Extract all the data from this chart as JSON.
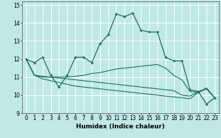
{
  "xlabel": "Humidex (Indice chaleur)",
  "background_color": "#c0e8e8",
  "grid_color": "#ffffff",
  "line_color": "#1a6b60",
  "x_values": [
    0,
    1,
    2,
    3,
    4,
    5,
    6,
    7,
    8,
    9,
    10,
    11,
    12,
    13,
    14,
    15,
    16,
    17,
    18,
    19,
    20,
    21,
    22,
    23
  ],
  "series": [
    [
      12.0,
      11.8,
      12.1,
      11.1,
      10.45,
      11.1,
      12.1,
      12.1,
      11.8,
      12.85,
      13.35,
      14.5,
      14.35,
      14.55,
      13.6,
      13.5,
      13.5,
      12.1,
      11.9,
      11.9,
      10.3,
      10.2,
      9.5,
      9.85
    ],
    [
      12.0,
      11.1,
      11.05,
      11.0,
      11.0,
      11.0,
      11.05,
      11.1,
      11.2,
      11.25,
      11.35,
      11.45,
      11.5,
      11.55,
      11.6,
      11.65,
      11.7,
      11.5,
      11.1,
      10.85,
      10.2,
      10.15,
      10.4,
      9.85
    ],
    [
      12.0,
      11.1,
      11.0,
      11.0,
      10.95,
      10.9,
      10.85,
      10.8,
      10.75,
      10.7,
      10.65,
      10.6,
      10.55,
      10.5,
      10.45,
      10.4,
      10.35,
      10.3,
      10.25,
      10.0,
      9.95,
      10.2,
      10.35,
      9.85
    ],
    [
      12.0,
      11.1,
      10.9,
      10.8,
      10.7,
      10.6,
      10.5,
      10.45,
      10.4,
      10.35,
      10.3,
      10.25,
      10.2,
      10.15,
      10.1,
      10.05,
      10.0,
      9.95,
      9.9,
      9.85,
      9.8,
      10.15,
      10.35,
      9.85
    ]
  ],
  "markers": [
    [
      0,
      1,
      2,
      3,
      4,
      5,
      6,
      7,
      8,
      9,
      10,
      11,
      12,
      13,
      14,
      15,
      16,
      17,
      18,
      19,
      20,
      21,
      22,
      23
    ],
    [],
    [],
    []
  ],
  "ylim": [
    9,
    15.2
  ],
  "yticks": [
    9,
    10,
    11,
    12,
    13,
    14,
    15
  ],
  "xlim": [
    -0.5,
    23.5
  ],
  "xticks": [
    0,
    1,
    2,
    3,
    4,
    5,
    6,
    7,
    8,
    9,
    10,
    11,
    12,
    13,
    14,
    15,
    16,
    17,
    18,
    19,
    20,
    21,
    22,
    23
  ]
}
